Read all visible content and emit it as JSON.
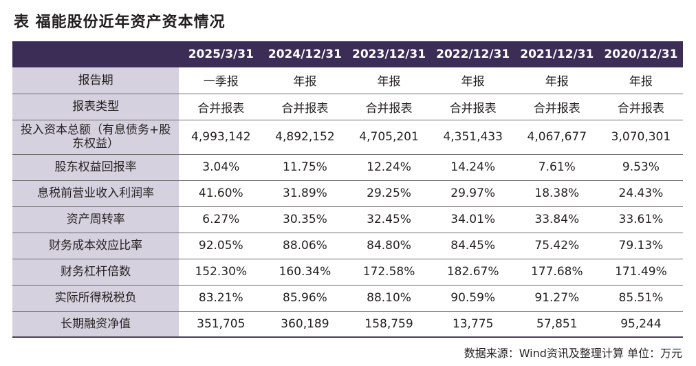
{
  "title": "表  福能股份近年资产资本情况",
  "header": {
    "corner": "",
    "columns": [
      "2025/3/31",
      "2024/12/31",
      "2023/12/31",
      "2022/12/31",
      "2021/12/31",
      "2020/12/31"
    ]
  },
  "rows": [
    {
      "label": "报告期",
      "values": [
        "一季报",
        "年报",
        "年报",
        "年报",
        "年报",
        "年报"
      ]
    },
    {
      "label": "报表类型",
      "values": [
        "合并报表",
        "合并报表",
        "合并报表",
        "合并报表",
        "合并报表",
        "合并报表"
      ]
    },
    {
      "label": "投入资本总额（有息债务+股东权益）",
      "values": [
        "4,993,142",
        "4,892,152",
        "4,705,201",
        "4,351,433",
        "4,067,677",
        "3,070,301"
      ]
    },
    {
      "label": "股东权益回报率",
      "values": [
        "3.04%",
        "11.75%",
        "12.24%",
        "14.24%",
        "7.61%",
        "9.53%"
      ]
    },
    {
      "label": "息税前营业收入利润率",
      "values": [
        "41.60%",
        "31.89%",
        "29.25%",
        "29.97%",
        "18.38%",
        "24.43%"
      ]
    },
    {
      "label": "资产周转率",
      "values": [
        "6.27%",
        "30.35%",
        "32.45%",
        "34.01%",
        "33.84%",
        "33.61%"
      ]
    },
    {
      "label": "财务成本效应比率",
      "values": [
        "92.05%",
        "88.06%",
        "84.80%",
        "84.45%",
        "75.42%",
        "79.13%"
      ]
    },
    {
      "label": "财务杠杆倍数",
      "values": [
        "152.30%",
        "160.34%",
        "172.58%",
        "182.67%",
        "177.68%",
        "171.49%"
      ]
    },
    {
      "label": "实际所得税税负",
      "values": [
        "83.21%",
        "85.96%",
        "88.10%",
        "90.59%",
        "91.27%",
        "85.51%"
      ]
    },
    {
      "label": "长期融资净值",
      "values": [
        "351,705",
        "360,189",
        "158,759",
        "13,775",
        "57,851",
        "95,244"
      ]
    }
  ],
  "footer": "数据来源：Wind资讯及整理计算  单位：万元",
  "colors": {
    "header_bg": "#3b2d55",
    "label_bg": "#d6d1de",
    "rule": "#6d6a6f"
  }
}
